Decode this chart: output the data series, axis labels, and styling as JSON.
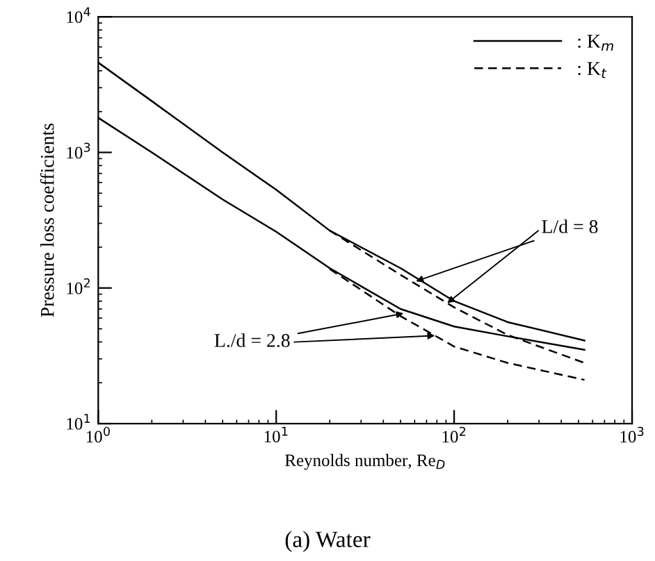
{
  "chart_data": {
    "type": "line",
    "xlabel": "Reynolds number, Re$_{D}$",
    "ylabel": "Pressure loss coefficients",
    "title": "(a) Water",
    "log": "xy",
    "xlim": [
      1,
      1000
    ],
    "ylim": [
      10,
      10000
    ],
    "xticks": [
      {
        "value": 1,
        "label": "10$^{0}$"
      },
      {
        "value": 10,
        "label": "10$^{1}$"
      },
      {
        "value": 100,
        "label": "10$^{2}$"
      },
      {
        "value": 1000,
        "label": "10$^{3}$"
      }
    ],
    "yticks": [
      {
        "value": 10,
        "label": "10$^{1}$"
      },
      {
        "value": 100,
        "label": "10$^{2}$"
      },
      {
        "value": 1000,
        "label": "10$^{3}$"
      },
      {
        "value": 10000,
        "label": "10$^{4}$"
      }
    ],
    "legend": "top right",
    "grid": false,
    "marker": "none",
    "series": [
      {
        "name": ": K$_{m}$",
        "color": "#000000",
        "line_style": "solid",
        "x": [
          1,
          2,
          5,
          10,
          20,
          50,
          100,
          200,
          540
        ],
        "values": [
          4600,
          2390,
          1000,
          530,
          265,
          140,
          80,
          56,
          41
        ]
      },
      {
        "name": ": K$_{t}$",
        "color": "#000000",
        "line_style": "dashed",
        "x": [
          20,
          50,
          100,
          200,
          540
        ],
        "values": [
          265,
          125,
          72,
          45,
          28
        ]
      },
      {
        "color": "#000000",
        "line_style": "solid",
        "x": [
          1,
          2,
          5,
          10,
          20,
          50,
          100,
          200,
          540
        ],
        "values": [
          1800,
          1000,
          450,
          260,
          140,
          70,
          52,
          44,
          35
        ]
      },
      {
        "color": "#000000",
        "line_style": "dashed",
        "x": [
          20,
          50,
          100,
          200,
          540
        ],
        "values": [
          138,
          62,
          37,
          28,
          21
        ]
      }
    ],
    "annotations": [
      {
        "text": "L/d = 8",
        "x": 61,
        "y": 112
      },
      {
        "text": "L./d = 2.8",
        "x": 52,
        "y": 65
      }
    ]
  }
}
